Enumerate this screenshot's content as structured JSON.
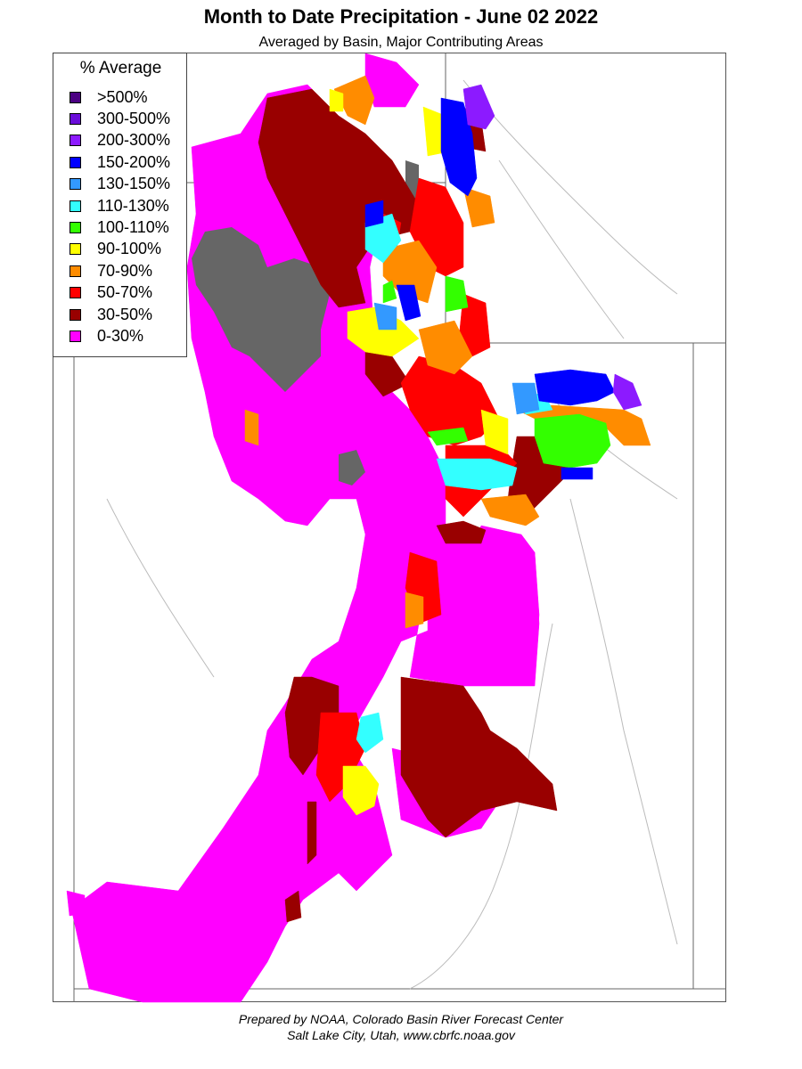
{
  "title": "Month to Date Precipitation - June 02 2022",
  "subtitle": "Averaged by Basin, Major Contributing Areas",
  "legend": {
    "title": "% Average",
    "items": [
      {
        "label": ">500%",
        "color": "#4b0082"
      },
      {
        "label": "300-500%",
        "color": "#6a0dd9"
      },
      {
        "label": "200-300%",
        "color": "#8c1aff"
      },
      {
        "label": "150-200%",
        "color": "#0000ff"
      },
      {
        "label": "130-150%",
        "color": "#3399ff"
      },
      {
        "label": "110-130%",
        "color": "#33ffff"
      },
      {
        "label": "100-110%",
        "color": "#33ff00"
      },
      {
        "label": "90-100%",
        "color": "#ffff00"
      },
      {
        "label": "70-90%",
        "color": "#ff8c00"
      },
      {
        "label": "50-70%",
        "color": "#ff0000"
      },
      {
        "label": "30-50%",
        "color": "#990000"
      },
      {
        "label": "0-30%",
        "color": "#ff00ff"
      }
    ]
  },
  "colors": {
    "no_data": "#666666",
    "boundary": "#999999"
  },
  "footer": {
    "line1": "Prepared by NOAA, Colorado Basin River Forecast Center",
    "line2": "Salt Lake City, Utah, www.cbrfc.noaa.gov"
  }
}
